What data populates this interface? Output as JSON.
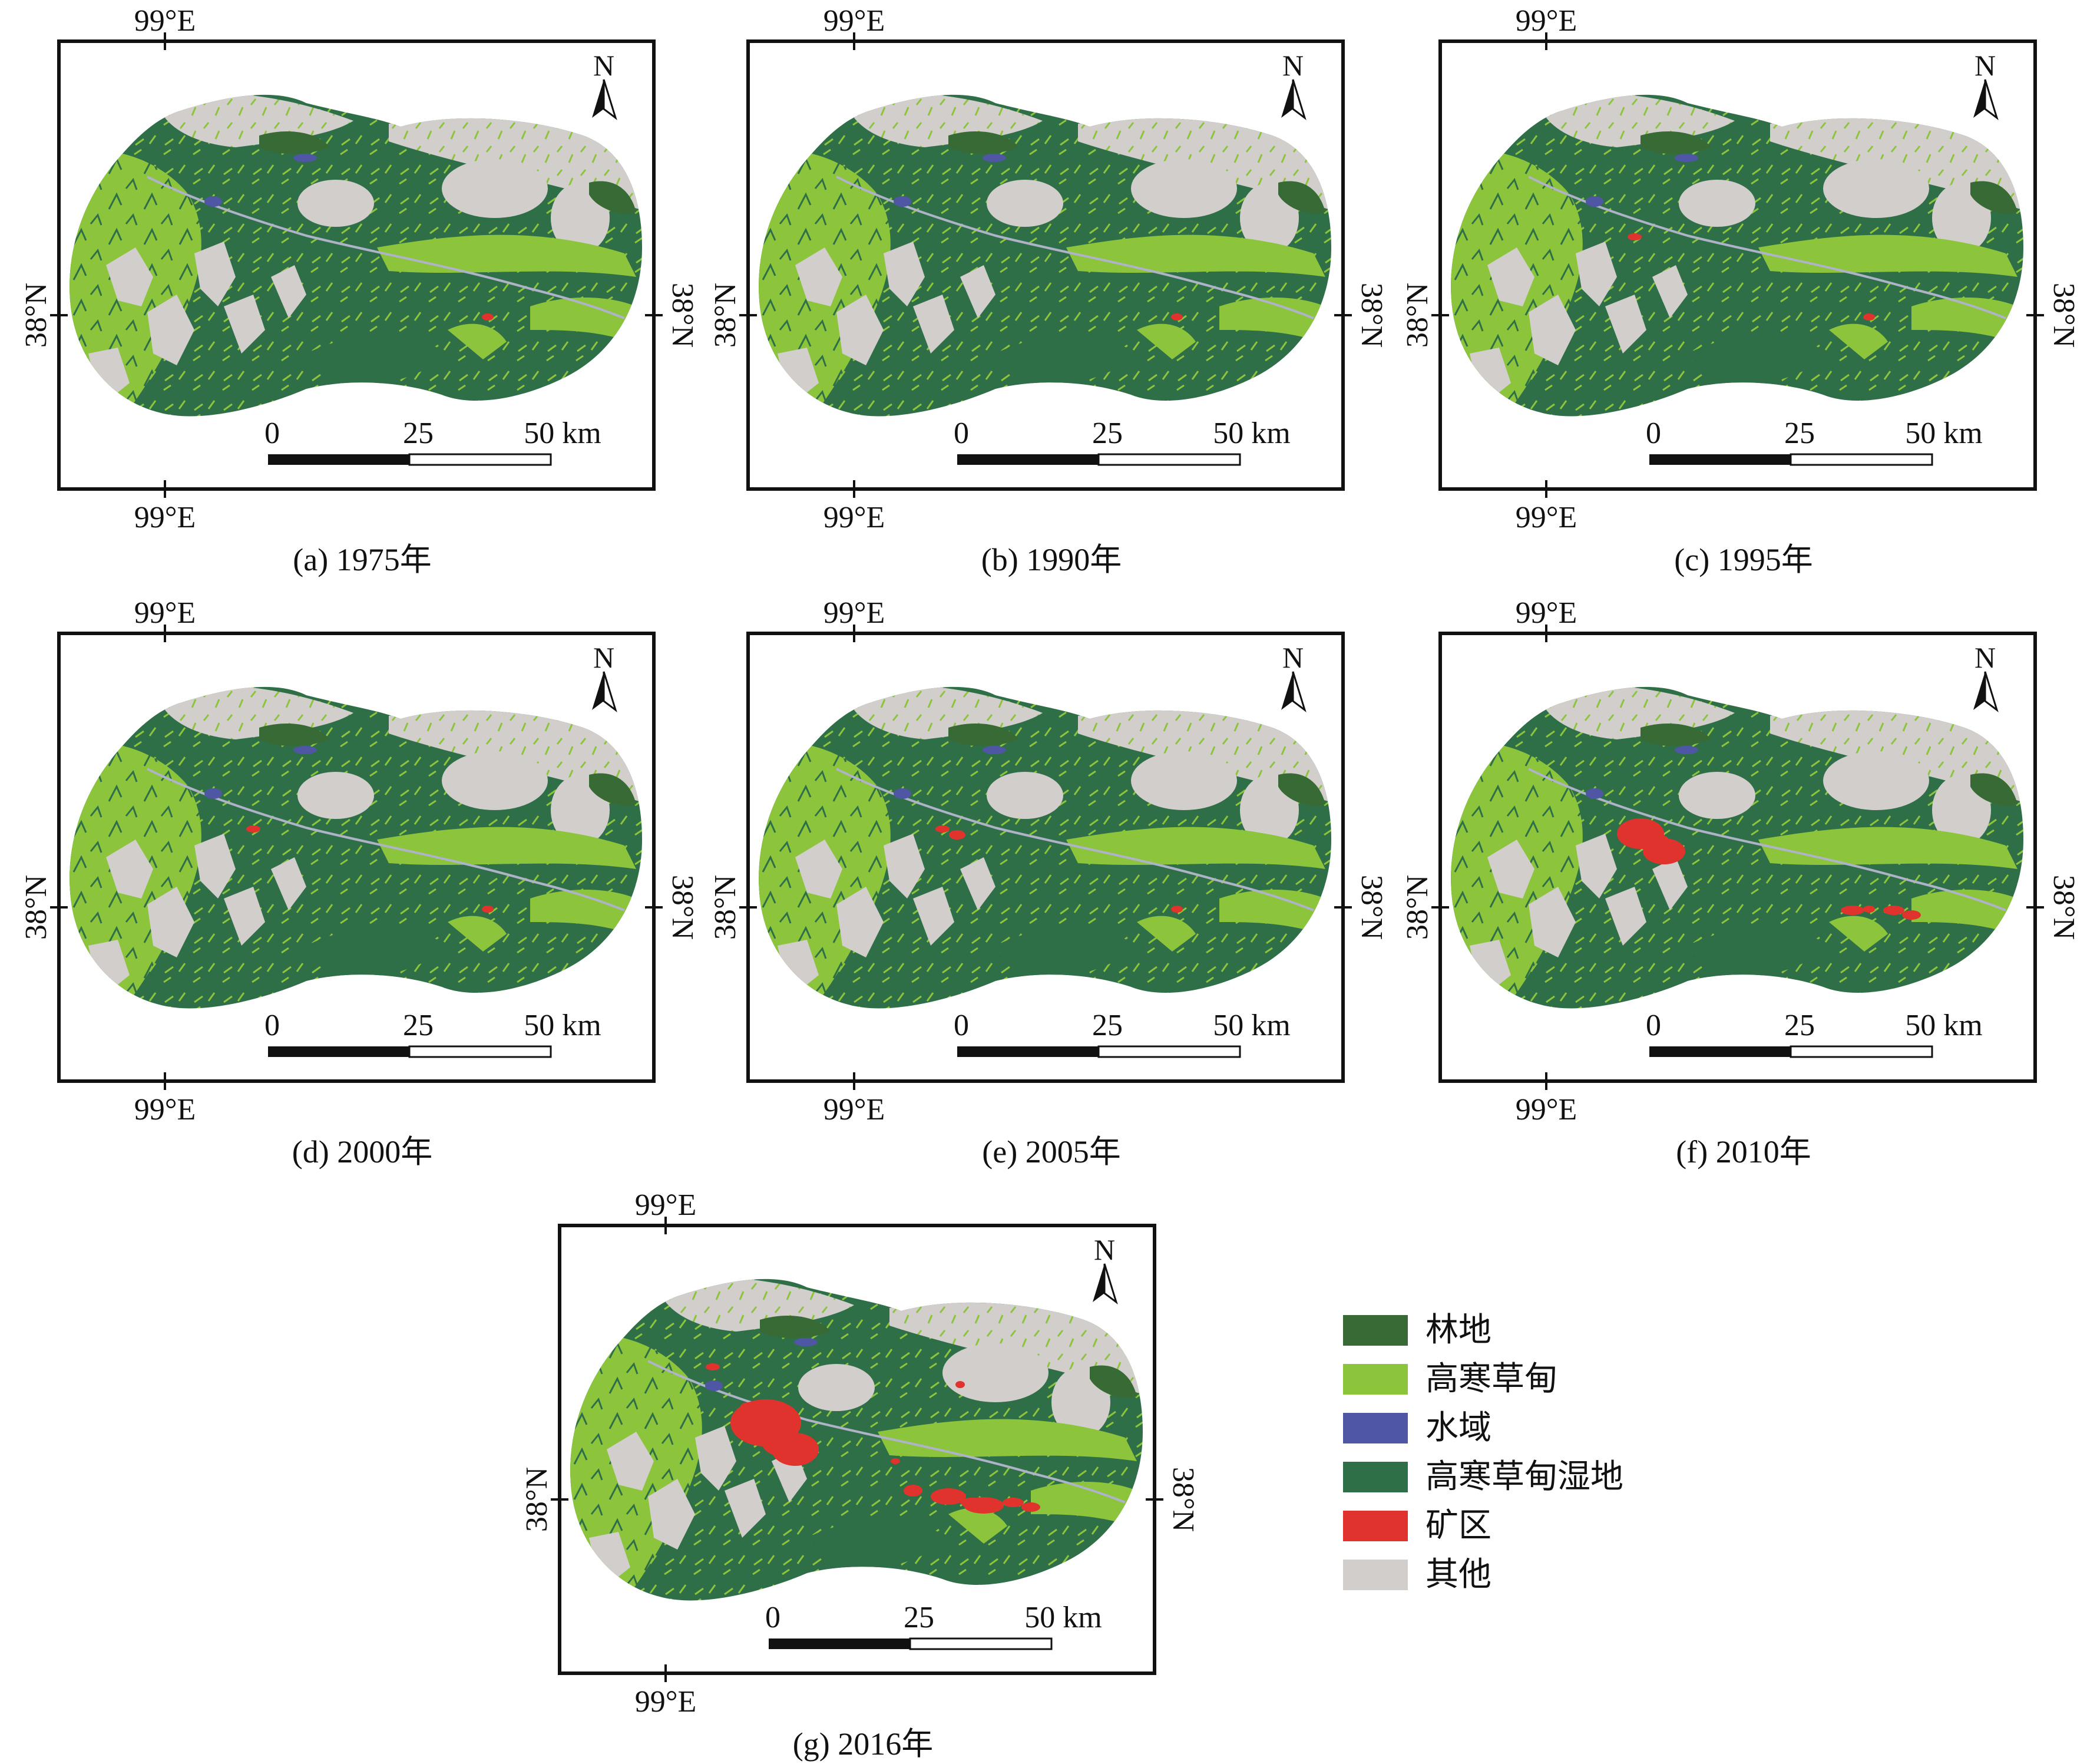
{
  "colors": {
    "forest": "#376a34",
    "alpine_meadow": "#8cc43c",
    "water": "#4f56a4",
    "alpine_meadow_wetland": "#2f6f48",
    "mining_area": "#e1332d",
    "other": "#d2cecb",
    "frame": "#111111"
  },
  "map_labels": {
    "lon_top": "99°E",
    "lon_bottom": "99°E",
    "lat_left": "38°N",
    "lat_right": "38°N",
    "north": "N",
    "scale_0": "0",
    "scale_25": "25",
    "scale_50": "50 km"
  },
  "panels": [
    {
      "caption": "(a) 1975年",
      "mining_level": 0.05
    },
    {
      "caption": "(b) 1990年",
      "mining_level": 0.1
    },
    {
      "caption": "(c) 1995年",
      "mining_level": 0.15
    },
    {
      "caption": "(d) 2000年",
      "mining_level": 0.2
    },
    {
      "caption": "(e) 2005年",
      "mining_level": 0.3
    },
    {
      "caption": "(f) 2010年",
      "mining_level": 0.65
    },
    {
      "caption": "(g) 2016年",
      "mining_level": 1.0
    }
  ],
  "legend": [
    {
      "label": "林地",
      "color_key": "forest"
    },
    {
      "label": "高寒草甸",
      "color_key": "alpine_meadow"
    },
    {
      "label": "水域",
      "color_key": "water"
    },
    {
      "label": "高寒草甸湿地",
      "color_key": "alpine_meadow_wetland"
    },
    {
      "label": "矿区",
      "color_key": "mining_area"
    },
    {
      "label": "其他",
      "color_key": "other"
    }
  ]
}
